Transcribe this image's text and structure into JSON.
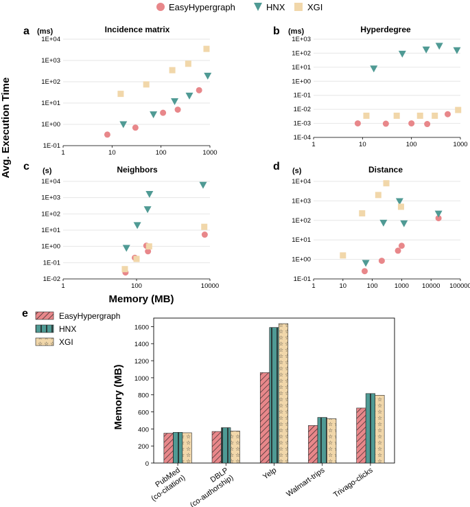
{
  "legend": {
    "items": [
      "EasyHypergraph",
      "HNX",
      "XGI"
    ]
  },
  "colors": {
    "EasyHypergraph": "#e8878a",
    "HNX": "#4f9a94",
    "XGI": "#f1d7aa",
    "bar_edge": "#222222"
  },
  "ylabel_shared": "Avg. Execution Time",
  "xlabel_shared": "Memory (MB)",
  "chart_data": [
    {
      "id": "a",
      "panel_label": "a",
      "type": "scatter",
      "title": "Incidence matrix",
      "unit": "(ms)",
      "xscale": "log",
      "yscale": "log",
      "xlim": [
        1,
        1000
      ],
      "ylim": [
        0.1,
        10000
      ],
      "xticks": [
        1,
        10,
        100,
        1000
      ],
      "xtick_labels": [
        "1",
        "10",
        "100",
        "1000"
      ],
      "yticks": [
        0.1,
        1,
        10,
        100,
        1000,
        10000
      ],
      "ytick_labels": [
        "1E-01",
        "1E+00",
        "1E+01",
        "1E+02",
        "1E+03",
        "1E+04"
      ],
      "series": [
        {
          "name": "EasyHypergraph",
          "x": [
            8,
            30,
            110,
            220,
            600
          ],
          "y": [
            0.33,
            0.7,
            3.5,
            4.9,
            40
          ]
        },
        {
          "name": "HNX",
          "x": [
            17,
            70,
            190,
            380,
            900
          ],
          "y": [
            1.0,
            2.9,
            12,
            22,
            190
          ]
        },
        {
          "name": "XGI",
          "x": [
            15,
            50,
            170,
            360,
            850
          ],
          "y": [
            27,
            75,
            350,
            700,
            3500
          ]
        }
      ]
    },
    {
      "id": "b",
      "panel_label": "b",
      "type": "scatter",
      "title": "Hyperdegree",
      "unit": "(ms)",
      "xscale": "log",
      "yscale": "log",
      "xlim": [
        1,
        1000
      ],
      "ylim": [
        0.0001,
        1000
      ],
      "xticks": [
        1,
        10,
        100,
        1000
      ],
      "xtick_labels": [
        "1",
        "10",
        "100",
        "1000"
      ],
      "yticks": [
        0.0001,
        0.001,
        0.01,
        0.1,
        1,
        10,
        100,
        1000
      ],
      "ytick_labels": [
        "1E-04",
        "1E-03",
        "1E-02",
        "1E-01",
        "1E+00",
        "1E+01",
        "1E+02",
        "1E+03"
      ],
      "series": [
        {
          "name": "EasyHypergraph",
          "x": [
            8,
            30,
            100,
            210,
            550
          ],
          "y": [
            0.001,
            0.00095,
            0.001,
            0.0009,
            0.0045
          ]
        },
        {
          "name": "HNX",
          "x": [
            17,
            65,
            200,
            370,
            850
          ],
          "y": [
            8,
            90,
            180,
            330,
            160
          ]
        },
        {
          "name": "XGI",
          "x": [
            12,
            50,
            150,
            300,
            900
          ],
          "y": [
            0.0035,
            0.0035,
            0.0035,
            0.0035,
            0.009
          ]
        }
      ]
    },
    {
      "id": "c",
      "panel_label": "c",
      "type": "scatter",
      "title": "Neighbors",
      "unit": "(s)",
      "xscale": "log",
      "yscale": "log",
      "xlim": [
        1,
        10000
      ],
      "ylim": [
        0.01,
        10000
      ],
      "xticks": [
        1,
        100,
        10000
      ],
      "xtick_labels": [
        "1",
        "100",
        "10000"
      ],
      "yticks": [
        0.01,
        0.1,
        1,
        10,
        100,
        1000,
        10000
      ],
      "ytick_labels": [
        "1E-02",
        "1E-01",
        "1E+00",
        "1E+01",
        "1E+02",
        "1E+03",
        "1E+04"
      ],
      "series": [
        {
          "name": "EasyHypergraph",
          "x": [
            50,
            90,
            185,
            205,
            7200
          ],
          "y": [
            0.025,
            0.2,
            1.1,
            0.5,
            5.3
          ]
        },
        {
          "name": "HNX",
          "x": [
            53,
            105,
            200,
            225,
            6500
          ],
          "y": [
            0.8,
            20,
            190,
            1650,
            6000
          ]
        },
        {
          "name": "XGI",
          "x": [
            48,
            100,
            220,
            7000
          ],
          "y": [
            0.04,
            0.17,
            1.0,
            16
          ]
        }
      ]
    },
    {
      "id": "d",
      "panel_label": "d",
      "type": "scatter",
      "title": "Distance",
      "unit": "(s)",
      "xscale": "log",
      "yscale": "log",
      "xlim": [
        1,
        100000
      ],
      "ylim": [
        0.1,
        10000
      ],
      "xticks": [
        1,
        10,
        100,
        1000,
        10000,
        100000
      ],
      "xtick_labels": [
        "1",
        "10",
        "100",
        "1000",
        "10000",
        "100000"
      ],
      "yticks": [
        0.1,
        1,
        10,
        100,
        1000,
        10000
      ],
      "ytick_labels": [
        "1E-01",
        "1E+00",
        "1E+01",
        "1E+02",
        "1E+03",
        "1E+04"
      ],
      "series": [
        {
          "name": "EasyHypergraph",
          "x": [
            55,
            210,
            750,
            1000,
            18000
          ],
          "y": [
            0.25,
            0.85,
            2.8,
            5.0,
            130
          ]
        },
        {
          "name": "HNX",
          "x": [
            60,
            240,
            850,
            1200,
            18000
          ],
          "y": [
            0.65,
            75,
            950,
            70,
            220
          ]
        },
        {
          "name": "XGI",
          "x": [
            10,
            45,
            160,
            300,
            950
          ],
          "y": [
            1.6,
            230,
            2000,
            8000,
            500
          ]
        }
      ]
    },
    {
      "id": "e",
      "panel_label": "e",
      "type": "bar",
      "title": "",
      "ylabel": "Memory (MB)",
      "categories": [
        "PubMed (co-citation)",
        "DBLP (co-authorship)",
        "Yelp",
        "Walmart-trips",
        "Trivago-clicks"
      ],
      "category_lines": [
        [
          "PubMed",
          "(co-citation)"
        ],
        [
          "DBLP",
          "(co-authorship)"
        ],
        [
          "Yelp"
        ],
        [
          "Walmart-trips"
        ],
        [
          "Trivago-clicks"
        ]
      ],
      "ylim": [
        0,
        1700
      ],
      "yticks": [
        0,
        200,
        400,
        600,
        800,
        1000,
        1200,
        1400,
        1600
      ],
      "ytick_labels": [
        "0",
        "200",
        "400",
        "600",
        "800",
        "1000",
        "1200",
        "1400",
        "1600"
      ],
      "series": [
        {
          "name": "EasyHypergraph",
          "values": [
            350,
            370,
            1060,
            440,
            645
          ]
        },
        {
          "name": "HNX",
          "values": [
            360,
            415,
            1590,
            535,
            815
          ]
        },
        {
          "name": "XGI",
          "values": [
            355,
            375,
            1635,
            520,
            795
          ]
        }
      ]
    }
  ]
}
